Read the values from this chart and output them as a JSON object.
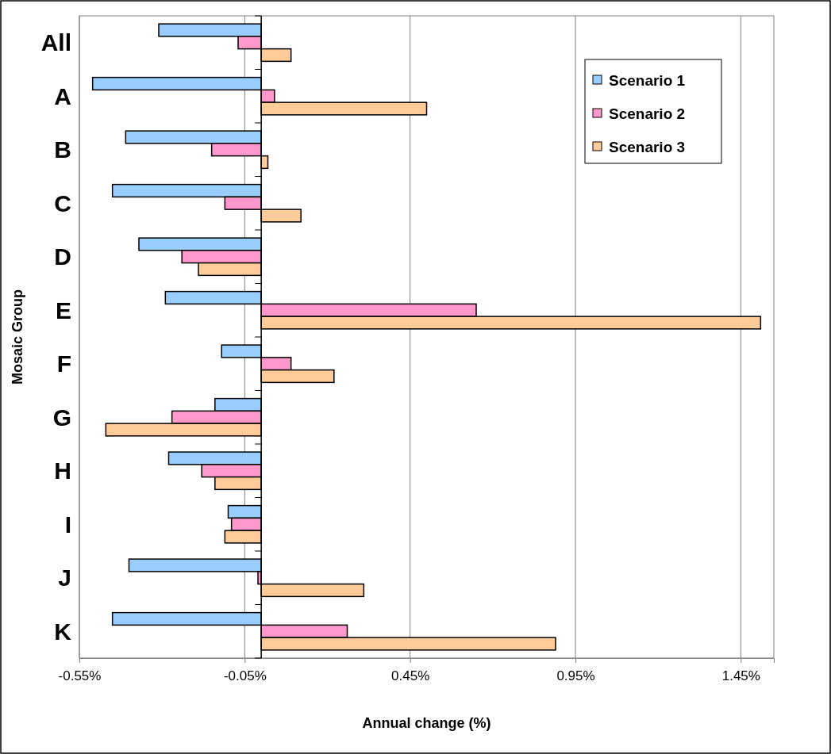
{
  "chart_data": {
    "type": "bar",
    "orientation": "horizontal",
    "xlabel": "Annual change (%)",
    "ylabel": "Mosaic Group",
    "categories": [
      "All",
      "A",
      "B",
      "C",
      "D",
      "E",
      "F",
      "G",
      "H",
      "I",
      "J",
      "K"
    ],
    "series": [
      {
        "name": "Scenario 1",
        "color": "#99ccff",
        "values": [
          -0.31,
          -0.51,
          -0.41,
          -0.45,
          -0.37,
          -0.29,
          -0.12,
          -0.14,
          -0.28,
          -0.1,
          -0.4,
          -0.45
        ]
      },
      {
        "name": "Scenario 2",
        "color": "#ff99cc",
        "values": [
          -0.07,
          0.04,
          -0.15,
          -0.11,
          -0.24,
          0.65,
          0.09,
          -0.27,
          -0.18,
          -0.09,
          -0.01,
          0.26
        ]
      },
      {
        "name": "Scenario 3",
        "color": "#ffcc99",
        "values": [
          0.09,
          0.5,
          0.02,
          0.12,
          -0.19,
          1.51,
          0.22,
          -0.47,
          -0.14,
          -0.11,
          0.31,
          0.89
        ]
      }
    ],
    "xlim": [
      -0.55,
      1.55
    ],
    "xticks": [
      {
        "value": -0.55,
        "label": "-0.55%"
      },
      {
        "value": -0.05,
        "label": "-0.05%"
      },
      {
        "value": 0.45,
        "label": "0.45%"
      },
      {
        "value": 0.95,
        "label": "0.95%"
      },
      {
        "value": 1.45,
        "label": "1.45%"
      }
    ],
    "grid": "x",
    "legend": "top right"
  }
}
